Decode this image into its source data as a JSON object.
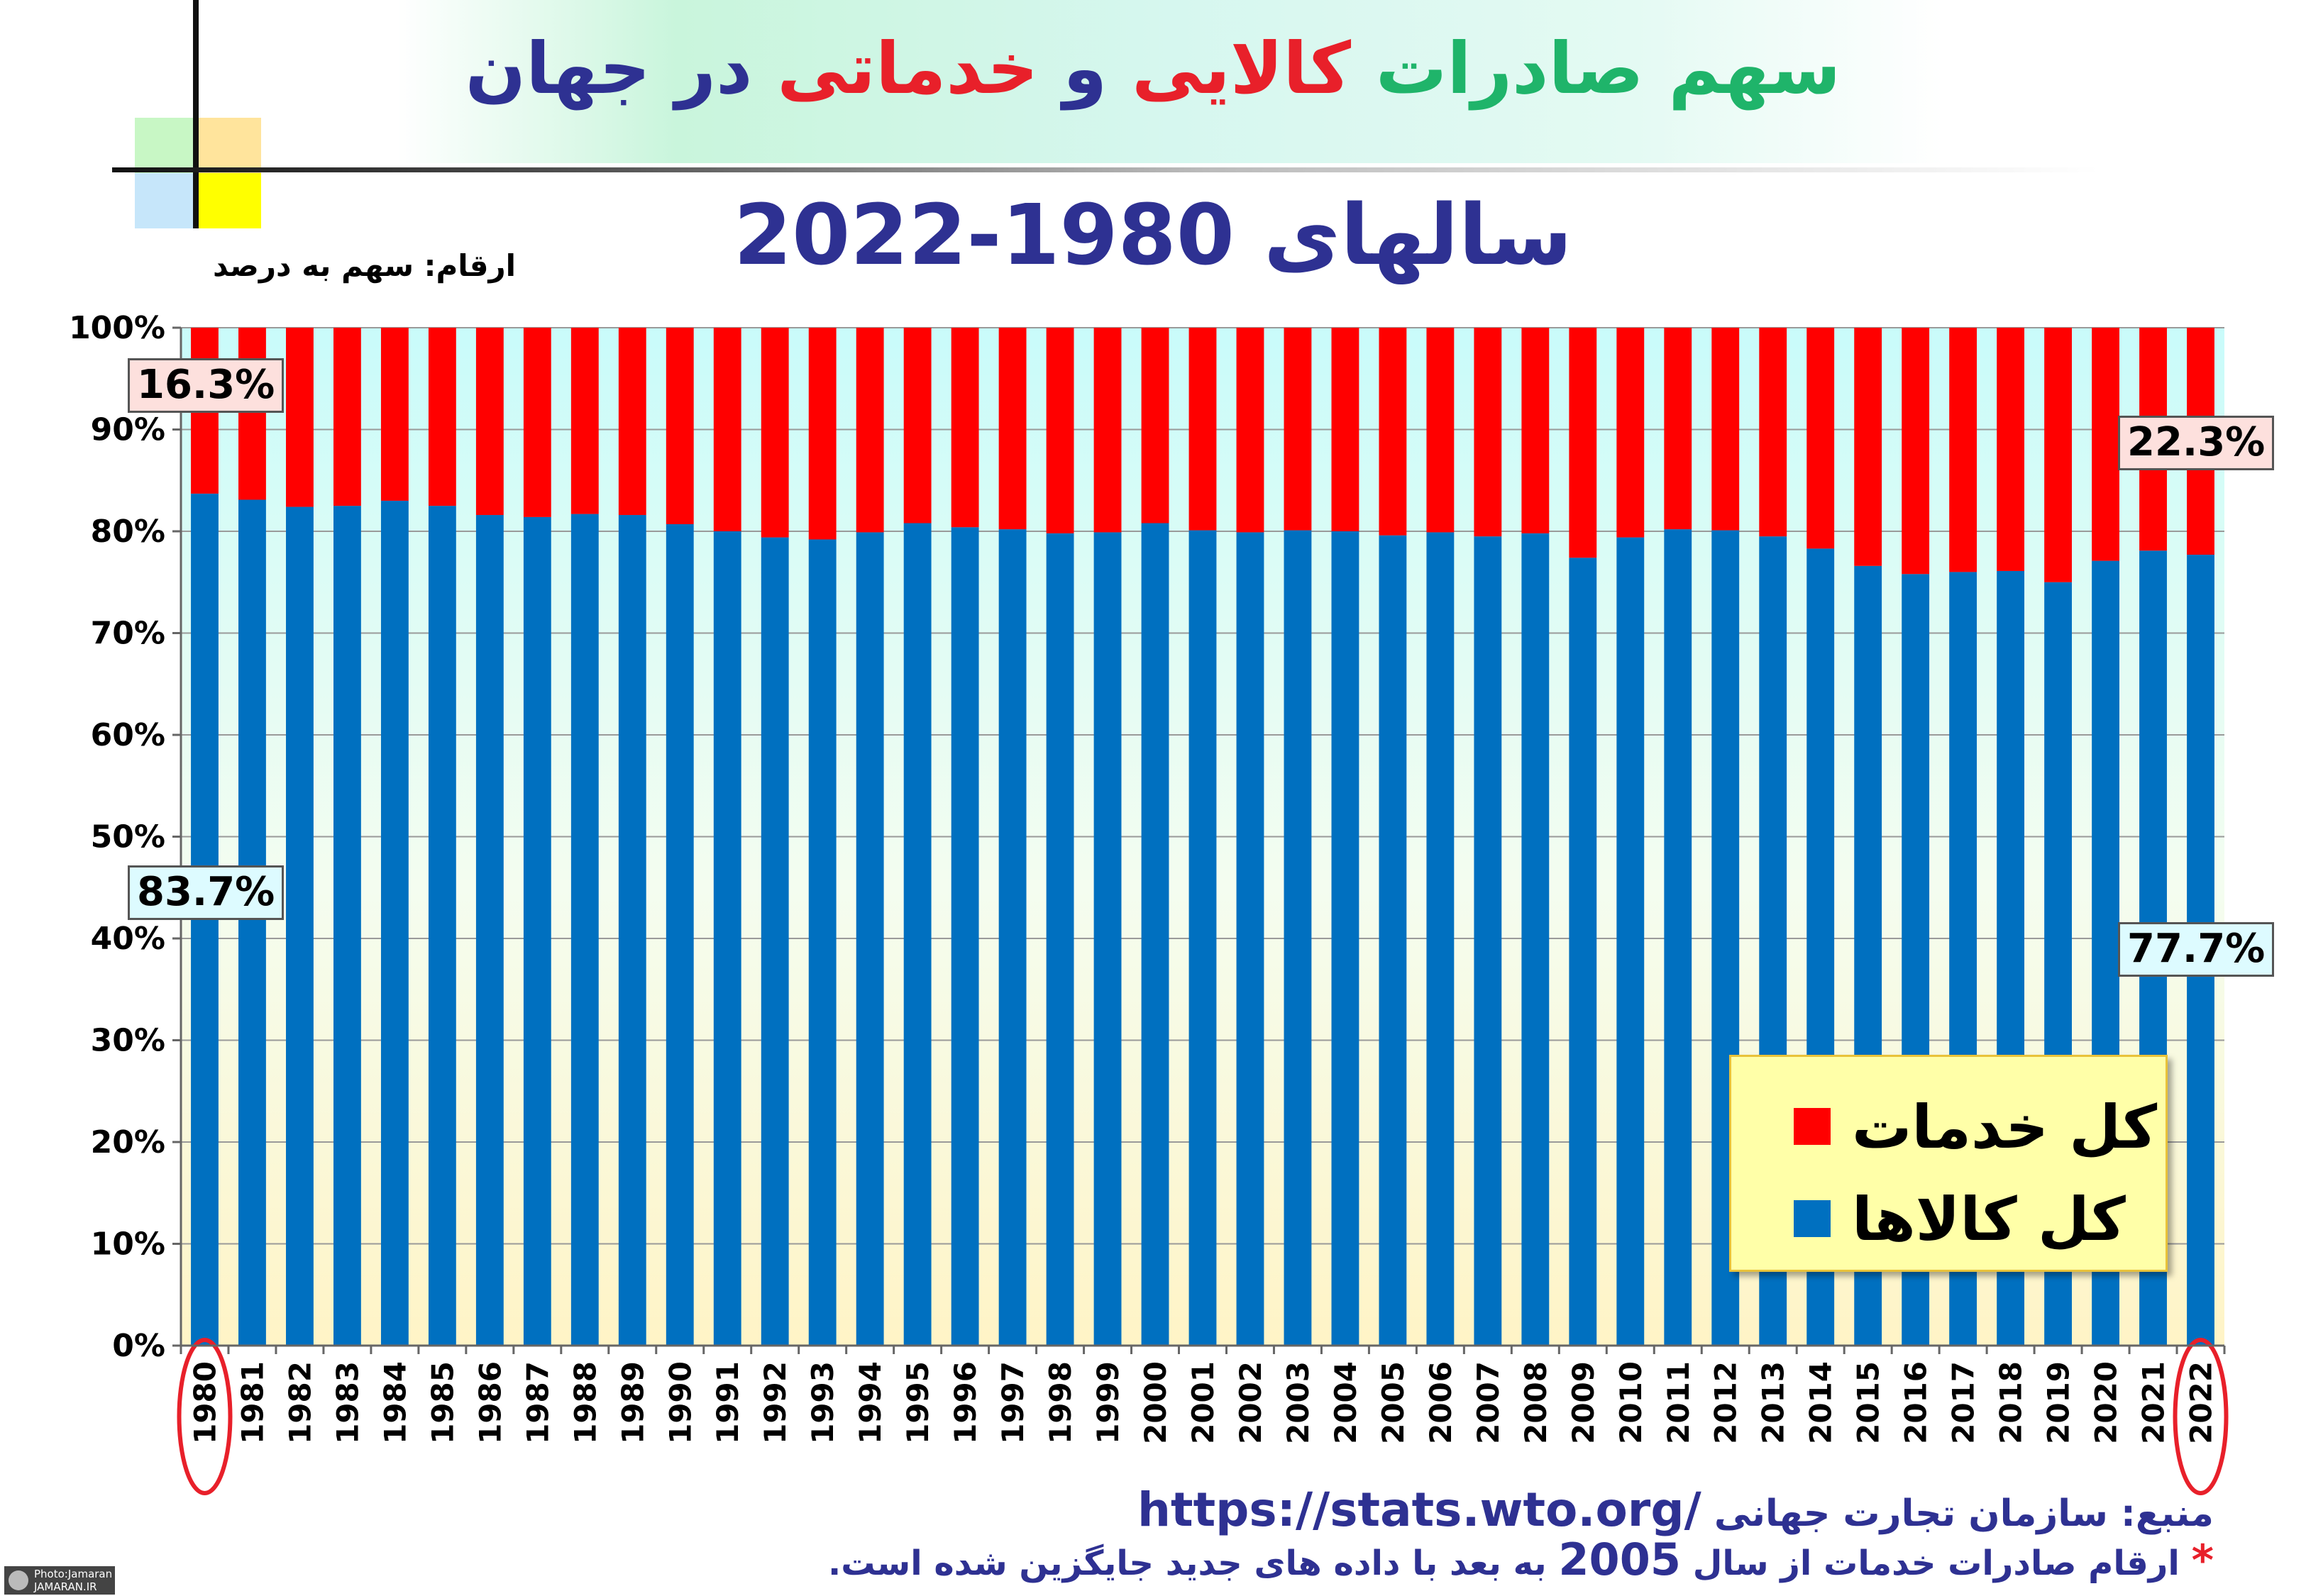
{
  "title": {
    "part1": "سهم صادرات",
    "part2": "کالایی",
    "part3": "و",
    "part4": "خدماتی",
    "part5": "در جهان"
  },
  "subtitle": "سالهای 1980-2022",
  "units_note": "ارقام: سهم به درصد",
  "callouts": {
    "services_1980": "16.3%",
    "goods_1980": "83.7%",
    "services_2022": "22.3%",
    "goods_2022": "77.7%"
  },
  "legend": {
    "services": "کل خدمات",
    "goods": "کل کالاها"
  },
  "source": {
    "label": "منبع: سازمان تجارت جهانی",
    "url": "https://stats.wto.org/"
  },
  "note": {
    "star": "*",
    "before": "ارقام صادرات خدمات از سال",
    "year": "2005",
    "after": "به بعد با داده های جدید جایگزین شده است."
  },
  "watermark": {
    "line1": "Photo:Jamaran",
    "line2": "JAMARAN.IR"
  },
  "colors": {
    "goods": "#0070c0",
    "services": "#ff0000",
    "title_blue": "#2e3192",
    "title_green": "#1fb46a",
    "title_red": "#e8202a"
  },
  "chart_data": {
    "type": "bar",
    "stacked": true,
    "percent": true,
    "title": "سالهای 1980-2022",
    "ylabel": "",
    "xlabel": "",
    "ylim": [
      0,
      100
    ],
    "yticks": [
      "0%",
      "10%",
      "20%",
      "30%",
      "40%",
      "50%",
      "60%",
      "70%",
      "80%",
      "90%",
      "100%"
    ],
    "categories": [
      "1980",
      "1981",
      "1982",
      "1983",
      "1984",
      "1985",
      "1986",
      "1987",
      "1988",
      "1989",
      "1990",
      "1991",
      "1992",
      "1993",
      "1994",
      "1995",
      "1996",
      "1997",
      "1998",
      "1999",
      "2000",
      "2001",
      "2002",
      "2003",
      "2004",
      "2005",
      "2006",
      "2007",
      "2008",
      "2009",
      "2010",
      "2011",
      "2012",
      "2013",
      "2014",
      "2015",
      "2016",
      "2017",
      "2018",
      "2019",
      "2020",
      "2021",
      "2022"
    ],
    "highlighted_categories": [
      "1980",
      "2022"
    ],
    "legend_position": "bottom-right",
    "series": [
      {
        "name": "کل کالاها",
        "values": [
          83.7,
          83.1,
          82.4,
          82.5,
          83.0,
          82.5,
          81.6,
          81.4,
          81.7,
          81.6,
          80.7,
          80.0,
          79.4,
          79.2,
          79.9,
          80.8,
          80.4,
          80.2,
          79.8,
          79.9,
          80.8,
          80.1,
          79.9,
          80.1,
          80.0,
          79.6,
          79.9,
          79.5,
          79.8,
          77.4,
          79.4,
          80.2,
          80.1,
          79.5,
          78.3,
          76.6,
          75.8,
          76.0,
          76.1,
          75.0,
          77.1,
          78.1,
          77.7
        ]
      },
      {
        "name": "کل خدمات",
        "values": [
          16.3,
          16.9,
          17.6,
          17.5,
          17.0,
          17.5,
          18.4,
          18.6,
          18.3,
          18.4,
          19.3,
          20.0,
          20.6,
          20.8,
          20.1,
          19.2,
          19.6,
          19.8,
          20.2,
          20.1,
          19.2,
          19.9,
          20.1,
          19.9,
          20.0,
          20.4,
          20.1,
          20.5,
          20.2,
          22.6,
          20.6,
          19.8,
          19.9,
          20.5,
          21.7,
          23.4,
          24.2,
          24.0,
          23.9,
          25.0,
          22.9,
          21.9,
          22.3
        ]
      }
    ]
  }
}
